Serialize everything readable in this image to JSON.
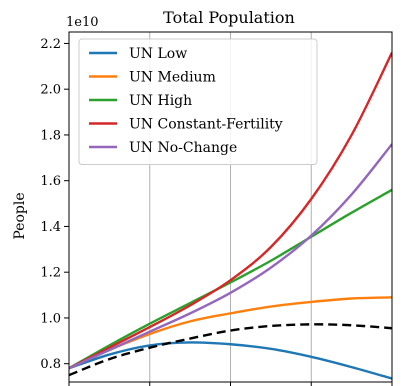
{
  "chart_data": {
    "type": "line",
    "title": "Total Population",
    "ylabel": "People",
    "y_offset_label": "1e10",
    "ylim": [
      0.72,
      2.25
    ],
    "xlim": [
      0,
      1
    ],
    "yticks": [
      0.8,
      1.0,
      1.2,
      1.4,
      1.6,
      1.8,
      2.0,
      2.2
    ],
    "ytick_labels": [
      "0.8",
      "1.0",
      "1.2",
      "1.4",
      "1.6",
      "1.8",
      "2.0",
      "2.2"
    ],
    "x_gridlines": [
      0.25,
      0.5,
      0.75
    ],
    "grid": "vertical",
    "legend_position": "top-left",
    "x": [
      0,
      0.125,
      0.25,
      0.375,
      0.5,
      0.625,
      0.75,
      0.875,
      1.0
    ],
    "series": [
      {
        "name": "UN Low",
        "color": "#1f77b4",
        "style": "solid",
        "values": [
          0.78,
          0.84,
          0.88,
          0.893,
          0.885,
          0.865,
          0.83,
          0.785,
          0.735
        ]
      },
      {
        "name": "UN Medium",
        "color": "#ff7f0e",
        "style": "solid",
        "values": [
          0.78,
          0.86,
          0.93,
          0.985,
          1.02,
          1.05,
          1.07,
          1.085,
          1.09
        ]
      },
      {
        "name": "UN High",
        "color": "#2ca02c",
        "style": "solid",
        "values": [
          0.78,
          0.88,
          0.975,
          1.065,
          1.155,
          1.25,
          1.355,
          1.46,
          1.56
        ]
      },
      {
        "name": "UN Constant-Fertility",
        "color": "#d62728",
        "style": "solid",
        "values": [
          0.78,
          0.87,
          0.96,
          1.055,
          1.165,
          1.31,
          1.52,
          1.8,
          2.16
        ]
      },
      {
        "name": "UN No-Change",
        "color": "#9467bd",
        "style": "solid",
        "values": [
          0.78,
          0.86,
          0.94,
          1.02,
          1.11,
          1.22,
          1.36,
          1.54,
          1.76
        ]
      },
      {
        "name": "",
        "color": "#000000",
        "style": "dashed",
        "values": [
          0.75,
          0.82,
          0.87,
          0.91,
          0.945,
          0.965,
          0.972,
          0.968,
          0.955
        ]
      }
    ]
  }
}
